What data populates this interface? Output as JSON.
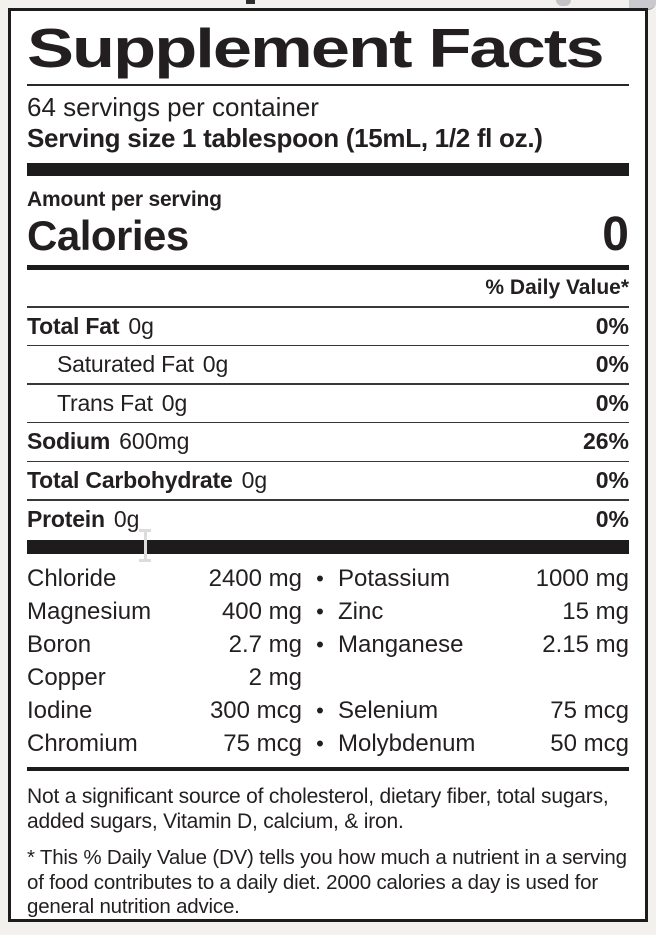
{
  "label": {
    "title": "Supplement Facts",
    "servings_per_container": "64 servings per container",
    "serving_size": "Serving size 1 tablespoon (15mL, 1/2 fl oz.)",
    "amount_per_serving": "Amount per serving",
    "calories_label": "Calories",
    "calories_value": "0",
    "daily_value_header": "% Daily Value*",
    "nutrient_rows": [
      {
        "name": "Total Fat",
        "amount": "0g",
        "dv": "0%"
      },
      {
        "name": "Saturated Fat",
        "amount": "0g",
        "dv": "0%"
      },
      {
        "name": "Trans Fat",
        "amount": "0g",
        "dv": "0%"
      },
      {
        "name": "Sodium",
        "amount": "600mg",
        "dv": "26%"
      },
      {
        "name": "Total Carbohydrate",
        "amount": "0g",
        "dv": "0%"
      },
      {
        "name": "Protein",
        "amount": "0g",
        "dv": "0%"
      }
    ],
    "mineral_rows": [
      {
        "name1": "Chloride",
        "value1": "2400 mg",
        "bullet": "•",
        "name2": "Potassium",
        "value2": "1000 mg"
      },
      {
        "name1": "Magnesium",
        "value1": "400 mg",
        "bullet": "•",
        "name2": "Zinc",
        "value2": "15 mg"
      },
      {
        "name1": "Boron",
        "value1": "2.7 mg",
        "bullet": "•",
        "name2": "Manganese",
        "value2": "2.15 mg"
      },
      {
        "name1": "Copper",
        "value1": "2 mg",
        "bullet": "",
        "name2": "",
        "value2": ""
      },
      {
        "name1": "Iodine",
        "value1": "300 mcg",
        "bullet": "•",
        "name2": "Selenium",
        "value2": "75 mcg"
      },
      {
        "name1": "Chromium",
        "value1": "75 mcg",
        "bullet": "•",
        "name2": "Molybdenum",
        "value2": "50 mcg"
      }
    ],
    "not_significant_note": "Not a significant source of cholesterol, dietary fiber, total sugars, added sugars, Vitamin D, calcium, & iron.",
    "dv_footnote": "* This % Daily Value (DV) tells you how much a nutrient in a serving of food contributes to a daily diet. 2000 calories a day is used for general nutrition advice.",
    "colors": {
      "ink": "#231f20",
      "label_background": "#ffffff",
      "page_background": "#f3f1ed"
    }
  },
  "cursor": {
    "type": "text-ibeam"
  }
}
